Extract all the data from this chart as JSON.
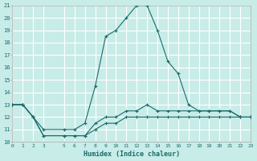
{
  "xlabel": "Humidex (Indice chaleur)",
  "bg_color": "#c8ece8",
  "grid_color": "#ffffff",
  "line_color": "#1a6b6b",
  "xlim": [
    0,
    23
  ],
  "ylim": [
    10,
    21
  ],
  "xticks": [
    0,
    1,
    2,
    3,
    5,
    6,
    7,
    8,
    9,
    10,
    11,
    12,
    13,
    14,
    15,
    16,
    17,
    18,
    19,
    20,
    21,
    22,
    23
  ],
  "yticks": [
    10,
    11,
    12,
    13,
    14,
    15,
    16,
    17,
    18,
    19,
    20,
    21
  ],
  "line1_x": [
    0,
    1,
    2,
    3,
    5,
    6,
    7,
    8,
    9,
    10,
    11,
    12,
    13,
    14,
    15,
    16,
    17,
    18,
    19,
    20,
    21,
    22,
    23
  ],
  "line1_y": [
    13.0,
    13.0,
    12.0,
    11.0,
    11.0,
    11.0,
    11.5,
    14.5,
    18.5,
    19.0,
    20.0,
    21.0,
    21.0,
    19.0,
    16.5,
    15.5,
    13.0,
    12.5,
    12.5,
    12.5,
    12.5,
    12.0,
    12.0
  ],
  "line2_x": [
    0,
    1,
    2,
    3,
    5,
    6,
    7,
    8,
    9,
    10,
    11,
    12,
    13,
    14,
    15,
    16,
    17,
    18,
    19,
    20,
    21,
    22,
    23
  ],
  "line2_y": [
    13.0,
    13.0,
    12.0,
    10.5,
    10.5,
    10.5,
    10.5,
    11.5,
    12.0,
    12.0,
    12.5,
    12.5,
    13.0,
    12.5,
    12.5,
    12.5,
    12.5,
    12.5,
    12.5,
    12.5,
    12.5,
    12.0,
    12.0
  ],
  "line3_x": [
    0,
    1,
    2,
    3,
    5,
    6,
    7,
    8,
    9,
    10,
    11,
    12,
    13,
    14,
    15,
    16,
    17,
    18,
    19,
    20,
    21,
    22,
    23
  ],
  "line3_y": [
    13.0,
    13.0,
    12.0,
    10.5,
    10.5,
    10.5,
    10.5,
    11.0,
    11.5,
    11.5,
    12.0,
    12.0,
    12.0,
    12.0,
    12.0,
    12.0,
    12.0,
    12.0,
    12.0,
    12.0,
    12.0,
    12.0,
    12.0
  ]
}
